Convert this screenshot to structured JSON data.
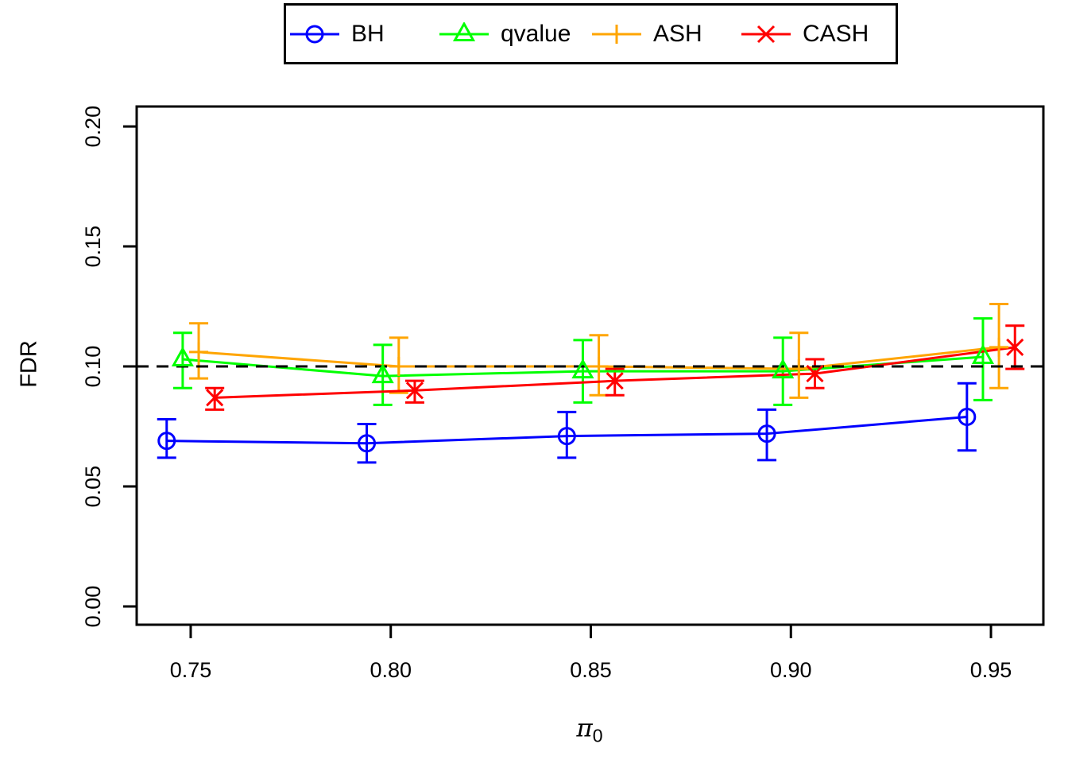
{
  "figure": {
    "background": "#ffffff"
  },
  "legend": {
    "items": [
      {
        "label": "BH",
        "color": "#0000ff",
        "marker": "circle"
      },
      {
        "label": "qvalue",
        "color": "#00ff00",
        "marker": "triangle"
      },
      {
        "label": "ASH",
        "color": "#ffa500",
        "marker": "plus"
      },
      {
        "label": "CASH",
        "color": "#ff0000",
        "marker": "x"
      }
    ]
  },
  "chart_data": {
    "type": "line",
    "title": "",
    "xlabel": {
      "symbol": "π",
      "subscript": "0"
    },
    "ylabel": "FDR",
    "x": [
      0.75,
      0.8,
      0.85,
      0.9,
      0.95
    ],
    "x_tick_labels": [
      "0.75",
      "0.80",
      "0.85",
      "0.90",
      "0.95"
    ],
    "y_ticks": [
      0.0,
      0.05,
      0.1,
      0.15,
      0.2
    ],
    "y_tick_labels": [
      "0.00",
      "0.05",
      "0.10",
      "0.15",
      "0.20"
    ],
    "xlim": [
      0.7365,
      0.9631
    ],
    "ylim": [
      -0.0076,
      0.2083
    ],
    "grid": false,
    "legend_position": "top-center",
    "reference_line": {
      "y": 0.1,
      "style": "dashed",
      "color": "#000000"
    },
    "series": [
      {
        "name": "BH",
        "color": "#0000ff",
        "marker": "circle",
        "x_offset": -0.006,
        "values": [
          0.069,
          0.068,
          0.071,
          0.072,
          0.079
        ],
        "lower": [
          0.062,
          0.06,
          0.062,
          0.061,
          0.065
        ],
        "upper": [
          0.078,
          0.076,
          0.081,
          0.082,
          0.093
        ]
      },
      {
        "name": "qvalue",
        "color": "#00ff00",
        "marker": "triangle",
        "x_offset": -0.002,
        "values": [
          0.103,
          0.096,
          0.098,
          0.098,
          0.104
        ],
        "lower": [
          0.091,
          0.084,
          0.085,
          0.084,
          0.086
        ],
        "upper": [
          0.114,
          0.109,
          0.111,
          0.112,
          0.12
        ]
      },
      {
        "name": "ASH",
        "color": "#ffa500",
        "marker": "plus",
        "x_offset": 0.002,
        "values": [
          0.106,
          0.1,
          0.1,
          0.099,
          0.108
        ],
        "lower": [
          0.095,
          0.089,
          0.088,
          0.087,
          0.091
        ],
        "upper": [
          0.118,
          0.112,
          0.113,
          0.114,
          0.126
        ]
      },
      {
        "name": "CASH",
        "color": "#ff0000",
        "marker": "x",
        "x_offset": 0.006,
        "values": [
          0.087,
          0.09,
          0.094,
          0.097,
          0.108
        ],
        "lower": [
          0.082,
          0.085,
          0.088,
          0.091,
          0.099
        ],
        "upper": [
          0.091,
          0.094,
          0.099,
          0.103,
          0.117
        ]
      }
    ]
  }
}
